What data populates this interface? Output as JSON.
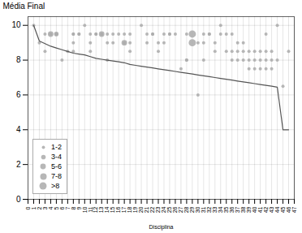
{
  "chart_data": {
    "type": "scatter",
    "xlabel": "Disciplina",
    "ylabel": "Média Final",
    "xlim": [
      0,
      47
    ],
    "ylim": [
      0,
      10.5
    ],
    "xticks": [
      0,
      1,
      2,
      3,
      4,
      5,
      6,
      7,
      8,
      9,
      10,
      11,
      12,
      13,
      14,
      15,
      16,
      17,
      18,
      19,
      20,
      21,
      22,
      23,
      24,
      25,
      26,
      27,
      28,
      29,
      30,
      31,
      32,
      33,
      34,
      35,
      36,
      37,
      38,
      39,
      40,
      41,
      42,
      43,
      44,
      45,
      46,
      47
    ],
    "yticks": [
      0,
      2,
      4,
      6,
      8,
      10
    ],
    "grid": true,
    "legend": "lower left",
    "series": [
      {
        "type": "scatter",
        "color": "#aaaaaa",
        "x": [
          1,
          2,
          3,
          3,
          4,
          4,
          5,
          5,
          5,
          6,
          7,
          8,
          8,
          8,
          8,
          9,
          9,
          10,
          11,
          11,
          11,
          12,
          12,
          13,
          13,
          14,
          14,
          14,
          15,
          15,
          16,
          17,
          17,
          17,
          18,
          18,
          18,
          20,
          21,
          21,
          22,
          22,
          23,
          23,
          24,
          24,
          25,
          25,
          26,
          27,
          28,
          28,
          28,
          29,
          29,
          30,
          30,
          31,
          31,
          31,
          32,
          32,
          33,
          33,
          34,
          34,
          35,
          35,
          36,
          36,
          36,
          37,
          37,
          37,
          38,
          38,
          38,
          39,
          39,
          39,
          40,
          40,
          40,
          41,
          41,
          41,
          42,
          42,
          42,
          42,
          43,
          43,
          43,
          44,
          44,
          45,
          46
        ],
        "values": [
          10.0,
          9.0,
          9.5,
          8.5,
          9.5,
          9.5,
          9.5,
          9.5,
          9.5,
          8.0,
          8.5,
          9.5,
          9.5,
          9.0,
          8.5,
          9.5,
          9.5,
          10.0,
          9.5,
          9.0,
          8.5,
          9.5,
          9.5,
          9.5,
          9.5,
          9.5,
          9.0,
          8.0,
          9.5,
          9.0,
          9.5,
          9.0,
          9.5,
          9.0,
          9.5,
          9.0,
          8.5,
          10.0,
          9.5,
          9.0,
          9.5,
          9.5,
          9.0,
          8.5,
          9.5,
          9.0,
          9.5,
          9.5,
          9.5,
          7.5,
          9.5,
          8.0,
          8.0,
          9.5,
          9.0,
          9.0,
          6.0,
          9.5,
          9.0,
          8.0,
          9.5,
          9.5,
          9.0,
          8.5,
          10.0,
          9.5,
          9.5,
          8.5,
          9.5,
          8.5,
          8.0,
          9.0,
          8.5,
          8.0,
          9.0,
          8.5,
          8.0,
          8.5,
          8.0,
          7.5,
          8.5,
          8.0,
          7.5,
          8.5,
          8.0,
          7.5,
          9.5,
          8.5,
          8.0,
          7.5,
          8.5,
          8.0,
          7.5,
          10.0,
          8.0,
          6.5,
          8.5
        ],
        "sizes": [
          1,
          2,
          2,
          2,
          2,
          5,
          4,
          2,
          2,
          2,
          2,
          2,
          2,
          2,
          2,
          2,
          2,
          2,
          2,
          2,
          2,
          2,
          2,
          5,
          2,
          2,
          2,
          2,
          2,
          2,
          2,
          5,
          2,
          2,
          2,
          2,
          2,
          2,
          2,
          2,
          2,
          2,
          2,
          2,
          2,
          2,
          2,
          2,
          2,
          2,
          2,
          2,
          2,
          9,
          9,
          2,
          2,
          2,
          2,
          2,
          2,
          2,
          2,
          2,
          2,
          2,
          2,
          2,
          2,
          2,
          2,
          2,
          2,
          2,
          2,
          2,
          2,
          2,
          2,
          2,
          2,
          2,
          2,
          2,
          2,
          2,
          2,
          2,
          2,
          2,
          2,
          2,
          2,
          2,
          2,
          2,
          2
        ]
      },
      {
        "type": "line",
        "color": "#555555",
        "x": [
          1,
          2,
          3,
          4,
          5,
          6,
          7,
          8,
          9,
          10,
          11,
          12,
          13,
          14,
          15,
          16,
          17,
          18,
          19,
          20,
          21,
          22,
          23,
          24,
          25,
          26,
          27,
          28,
          29,
          30,
          31,
          32,
          33,
          34,
          35,
          36,
          37,
          38,
          39,
          40,
          41,
          42,
          43,
          44,
          45,
          46
        ],
        "values": [
          10.0,
          9.1,
          8.95,
          8.8,
          8.7,
          8.6,
          8.5,
          8.4,
          8.35,
          8.3,
          8.2,
          8.1,
          8.05,
          8.0,
          7.95,
          7.9,
          7.85,
          7.75,
          7.7,
          7.65,
          7.6,
          7.55,
          7.5,
          7.45,
          7.4,
          7.35,
          7.3,
          7.25,
          7.2,
          7.15,
          7.1,
          7.05,
          7.0,
          6.95,
          6.9,
          6.85,
          6.8,
          6.75,
          6.7,
          6.65,
          6.6,
          6.55,
          6.5,
          6.45,
          4.0,
          4.0
        ]
      }
    ],
    "size_legend": {
      "labels": [
        "1-2",
        "3-4",
        "5-6",
        "7-8",
        ">8"
      ],
      "sizes": [
        [
          1,
          2
        ],
        [
          3,
          4
        ],
        [
          5,
          6
        ],
        [
          7,
          8
        ],
        [
          9
        ]
      ]
    }
  }
}
